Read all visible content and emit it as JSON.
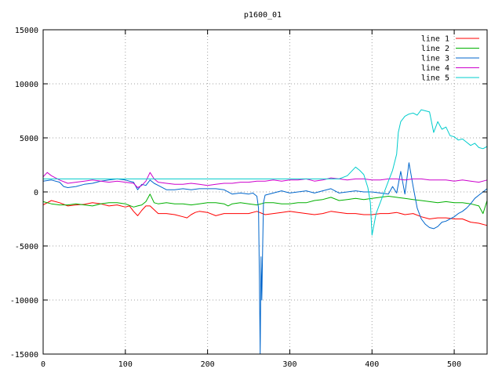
{
  "chart_data": {
    "type": "line",
    "title": "p1600_01",
    "xlim": [
      0,
      540
    ],
    "ylim": [
      -15000,
      15000
    ],
    "x_ticks": [
      0,
      100,
      200,
      300,
      400,
      500
    ],
    "y_ticks": [
      -15000,
      -10000,
      -5000,
      0,
      5000,
      10000,
      15000
    ],
    "grid": true,
    "legend_position": "top-right",
    "series": [
      {
        "name": "line 1",
        "color": "#ff0000",
        "points": [
          [
            0,
            -1200
          ],
          [
            10,
            -800
          ],
          [
            20,
            -1000
          ],
          [
            30,
            -1300
          ],
          [
            40,
            -1200
          ],
          [
            50,
            -1150
          ],
          [
            60,
            -1000
          ],
          [
            70,
            -1100
          ],
          [
            80,
            -1300
          ],
          [
            90,
            -1200
          ],
          [
            100,
            -1400
          ],
          [
            105,
            -1300
          ],
          [
            110,
            -1800
          ],
          [
            115,
            -2200
          ],
          [
            120,
            -1700
          ],
          [
            125,
            -1300
          ],
          [
            130,
            -1300
          ],
          [
            140,
            -2000
          ],
          [
            150,
            -2000
          ],
          [
            160,
            -2100
          ],
          [
            170,
            -2300
          ],
          [
            175,
            -2400
          ],
          [
            180,
            -2100
          ],
          [
            185,
            -1900
          ],
          [
            190,
            -1800
          ],
          [
            200,
            -1900
          ],
          [
            210,
            -2200
          ],
          [
            220,
            -2000
          ],
          [
            230,
            -2000
          ],
          [
            240,
            -2000
          ],
          [
            250,
            -2000
          ],
          [
            260,
            -1800
          ],
          [
            270,
            -2100
          ],
          [
            280,
            -2000
          ],
          [
            290,
            -1900
          ],
          [
            300,
            -1800
          ],
          [
            310,
            -1900
          ],
          [
            320,
            -2000
          ],
          [
            330,
            -2100
          ],
          [
            340,
            -2000
          ],
          [
            350,
            -1800
          ],
          [
            360,
            -1900
          ],
          [
            370,
            -2000
          ],
          [
            380,
            -2000
          ],
          [
            390,
            -2100
          ],
          [
            400,
            -2100
          ],
          [
            410,
            -2000
          ],
          [
            420,
            -2000
          ],
          [
            430,
            -1900
          ],
          [
            440,
            -2100
          ],
          [
            450,
            -2000
          ],
          [
            460,
            -2300
          ],
          [
            470,
            -2500
          ],
          [
            480,
            -2400
          ],
          [
            490,
            -2400
          ],
          [
            500,
            -2500
          ],
          [
            510,
            -2500
          ],
          [
            520,
            -2800
          ],
          [
            530,
            -2900
          ],
          [
            540,
            -3100
          ]
        ]
      },
      {
        "name": "line 2",
        "color": "#00b000",
        "points": [
          [
            0,
            -900
          ],
          [
            10,
            -1100
          ],
          [
            20,
            -1200
          ],
          [
            30,
            -1200
          ],
          [
            40,
            -1100
          ],
          [
            50,
            -1200
          ],
          [
            60,
            -1300
          ],
          [
            70,
            -1100
          ],
          [
            80,
            -1000
          ],
          [
            90,
            -1000
          ],
          [
            100,
            -1100
          ],
          [
            110,
            -1400
          ],
          [
            115,
            -1300
          ],
          [
            120,
            -1200
          ],
          [
            125,
            -900
          ],
          [
            130,
            -200
          ],
          [
            135,
            -1000
          ],
          [
            140,
            -1100
          ],
          [
            150,
            -1000
          ],
          [
            160,
            -1100
          ],
          [
            170,
            -1100
          ],
          [
            180,
            -1200
          ],
          [
            190,
            -1100
          ],
          [
            200,
            -1000
          ],
          [
            210,
            -1000
          ],
          [
            220,
            -1100
          ],
          [
            225,
            -1300
          ],
          [
            230,
            -1100
          ],
          [
            240,
            -1000
          ],
          [
            250,
            -1100
          ],
          [
            260,
            -1200
          ],
          [
            270,
            -1000
          ],
          [
            280,
            -1000
          ],
          [
            290,
            -1100
          ],
          [
            300,
            -1100
          ],
          [
            310,
            -1000
          ],
          [
            320,
            -1000
          ],
          [
            330,
            -800
          ],
          [
            340,
            -700
          ],
          [
            350,
            -500
          ],
          [
            360,
            -800
          ],
          [
            370,
            -700
          ],
          [
            380,
            -600
          ],
          [
            390,
            -700
          ],
          [
            400,
            -600
          ],
          [
            410,
            -500
          ],
          [
            420,
            -400
          ],
          [
            430,
            -500
          ],
          [
            440,
            -600
          ],
          [
            450,
            -700
          ],
          [
            460,
            -800
          ],
          [
            470,
            -900
          ],
          [
            480,
            -1000
          ],
          [
            490,
            -900
          ],
          [
            500,
            -1000
          ],
          [
            510,
            -1000
          ],
          [
            520,
            -1100
          ],
          [
            530,
            -1300
          ],
          [
            535,
            -2000
          ],
          [
            540,
            -800
          ]
        ]
      },
      {
        "name": "line 3",
        "color": "#0066cc",
        "points": [
          [
            0,
            1000
          ],
          [
            10,
            1100
          ],
          [
            20,
            900
          ],
          [
            25,
            500
          ],
          [
            30,
            400
          ],
          [
            40,
            500
          ],
          [
            50,
            700
          ],
          [
            60,
            800
          ],
          [
            70,
            1000
          ],
          [
            80,
            1100
          ],
          [
            90,
            1200
          ],
          [
            100,
            1100
          ],
          [
            110,
            900
          ],
          [
            115,
            200
          ],
          [
            120,
            700
          ],
          [
            125,
            600
          ],
          [
            130,
            1100
          ],
          [
            135,
            800
          ],
          [
            140,
            600
          ],
          [
            150,
            200
          ],
          [
            160,
            200
          ],
          [
            170,
            300
          ],
          [
            180,
            200
          ],
          [
            190,
            300
          ],
          [
            200,
            300
          ],
          [
            210,
            300
          ],
          [
            220,
            200
          ],
          [
            230,
            -200
          ],
          [
            240,
            -100
          ],
          [
            250,
            -200
          ],
          [
            255,
            -100
          ],
          [
            260,
            -400
          ],
          [
            262,
            -1500
          ],
          [
            263,
            -8000
          ],
          [
            264,
            -15000
          ],
          [
            265,
            -6000
          ],
          [
            266,
            -10000
          ],
          [
            267,
            -5000
          ],
          [
            268,
            -1000
          ],
          [
            270,
            -300
          ],
          [
            280,
            -100
          ],
          [
            290,
            100
          ],
          [
            300,
            -100
          ],
          [
            310,
            0
          ],
          [
            320,
            100
          ],
          [
            330,
            -100
          ],
          [
            340,
            100
          ],
          [
            350,
            300
          ],
          [
            360,
            -100
          ],
          [
            370,
            0
          ],
          [
            380,
            100
          ],
          [
            390,
            0
          ],
          [
            400,
            0
          ],
          [
            410,
            -100
          ],
          [
            420,
            -200
          ],
          [
            425,
            500
          ],
          [
            430,
            -100
          ],
          [
            435,
            1900
          ],
          [
            440,
            -200
          ],
          [
            445,
            2700
          ],
          [
            450,
            500
          ],
          [
            455,
            -1500
          ],
          [
            460,
            -2500
          ],
          [
            465,
            -3000
          ],
          [
            470,
            -3300
          ],
          [
            475,
            -3400
          ],
          [
            480,
            -3200
          ],
          [
            485,
            -2800
          ],
          [
            490,
            -2700
          ],
          [
            495,
            -2500
          ],
          [
            500,
            -2300
          ],
          [
            505,
            -2000
          ],
          [
            510,
            -1800
          ],
          [
            515,
            -1500
          ],
          [
            520,
            -1100
          ],
          [
            525,
            -600
          ],
          [
            530,
            -300
          ],
          [
            535,
            0
          ],
          [
            540,
            300
          ]
        ]
      },
      {
        "name": "line 4",
        "color": "#cc00cc",
        "points": [
          [
            0,
            1400
          ],
          [
            5,
            1800
          ],
          [
            10,
            1500
          ],
          [
            20,
            1100
          ],
          [
            30,
            800
          ],
          [
            40,
            900
          ],
          [
            50,
            1000
          ],
          [
            60,
            1100
          ],
          [
            70,
            1000
          ],
          [
            80,
            900
          ],
          [
            90,
            1000
          ],
          [
            100,
            900
          ],
          [
            110,
            800
          ],
          [
            115,
            400
          ],
          [
            120,
            600
          ],
          [
            125,
            1000
          ],
          [
            130,
            1800
          ],
          [
            135,
            1200
          ],
          [
            140,
            900
          ],
          [
            150,
            800
          ],
          [
            160,
            700
          ],
          [
            170,
            700
          ],
          [
            180,
            800
          ],
          [
            190,
            700
          ],
          [
            200,
            600
          ],
          [
            210,
            700
          ],
          [
            220,
            800
          ],
          [
            230,
            800
          ],
          [
            240,
            900
          ],
          [
            250,
            900
          ],
          [
            260,
            1000
          ],
          [
            270,
            1000
          ],
          [
            280,
            1100
          ],
          [
            290,
            1000
          ],
          [
            300,
            1100
          ],
          [
            310,
            1100
          ],
          [
            320,
            1200
          ],
          [
            330,
            1000
          ],
          [
            340,
            1100
          ],
          [
            350,
            1300
          ],
          [
            360,
            1200
          ],
          [
            370,
            1100
          ],
          [
            380,
            1200
          ],
          [
            390,
            1200
          ],
          [
            400,
            1100
          ],
          [
            410,
            1100
          ],
          [
            420,
            1200
          ],
          [
            430,
            1200
          ],
          [
            440,
            1100
          ],
          [
            450,
            1200
          ],
          [
            460,
            1200
          ],
          [
            470,
            1100
          ],
          [
            480,
            1100
          ],
          [
            490,
            1100
          ],
          [
            500,
            1000
          ],
          [
            510,
            1100
          ],
          [
            520,
            1000
          ],
          [
            530,
            900
          ],
          [
            540,
            1100
          ]
        ]
      },
      {
        "name": "line 5",
        "color": "#00cccc",
        "points": [
          [
            0,
            1200
          ],
          [
            100,
            1200
          ],
          [
            200,
            1200
          ],
          [
            300,
            1200
          ],
          [
            360,
            1200
          ],
          [
            370,
            1500
          ],
          [
            380,
            2300
          ],
          [
            385,
            2000
          ],
          [
            390,
            1600
          ],
          [
            395,
            400
          ],
          [
            398,
            -1000
          ],
          [
            400,
            -4000
          ],
          [
            405,
            -2000
          ],
          [
            410,
            -1000
          ],
          [
            415,
            0
          ],
          [
            420,
            1000
          ],
          [
            425,
            2000
          ],
          [
            430,
            3500
          ],
          [
            432,
            5500
          ],
          [
            435,
            6500
          ],
          [
            440,
            7000
          ],
          [
            445,
            7200
          ],
          [
            450,
            7300
          ],
          [
            455,
            7100
          ],
          [
            460,
            7600
          ],
          [
            465,
            7500
          ],
          [
            470,
            7400
          ],
          [
            475,
            5500
          ],
          [
            480,
            6500
          ],
          [
            485,
            5800
          ],
          [
            490,
            6000
          ],
          [
            495,
            5200
          ],
          [
            500,
            5100
          ],
          [
            505,
            4800
          ],
          [
            510,
            4900
          ],
          [
            515,
            4600
          ],
          [
            520,
            4300
          ],
          [
            525,
            4500
          ],
          [
            530,
            4100
          ],
          [
            535,
            4000
          ],
          [
            540,
            4200
          ]
        ]
      }
    ]
  }
}
